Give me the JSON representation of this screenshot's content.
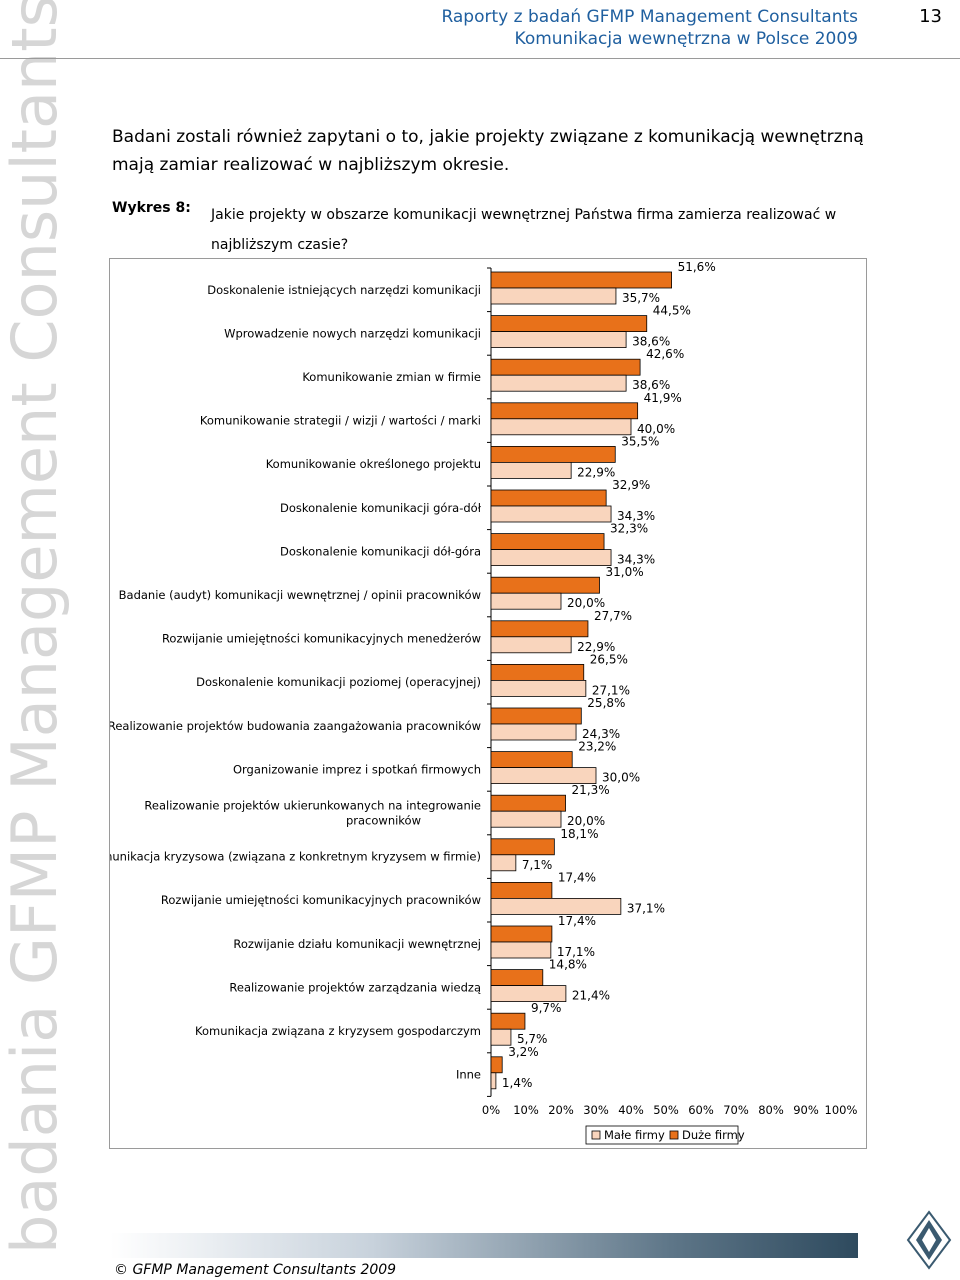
{
  "watermark": "badania GFMP Management Consultants",
  "header": {
    "line1": "Raporty z badań GFMP Management Consultants",
    "line2": "Komunikacja wewnętrzna w Polsce 2009",
    "page_number": "13"
  },
  "intro": "Badani zostali również zapytani o to, jakie projekty związane z komunikacją wewnętrzną mają zamiar realizować w najbliższym okresie.",
  "figure": {
    "label": "Wykres 8:",
    "title": "Jakie projekty w obszarze komunikacji wewnętrznej Państwa firma zamierza realizować w najbliższym czasie?"
  },
  "footer": "© GFMP Management Consultants 2009",
  "chart_data": {
    "type": "bar",
    "orientation": "horizontal",
    "categories": [
      "Doskonalenie istniejących narzędzi komunikacji",
      "Wprowadzenie nowych narzędzi komunikacji",
      "Komunikowanie zmian w firmie",
      "Komunikowanie strategii / wizji / wartości / marki",
      "Komunikowanie określonego projektu",
      "Doskonalenie komunikacji góra-dół",
      "Doskonalenie komunikacji dół-góra",
      "Badanie (audyt) komunikacji wewnętrznej / opinii pracowników",
      "Rozwijanie umiejętności komunikacyjnych menedżerów",
      "Doskonalenie komunikacji poziomej (operacyjnej)",
      "Realizowanie projektów budowania zaangażowania pracowników",
      "Organizowanie imprez i spotkań firmowych",
      "Realizowanie projektów ukierunkowanych na integrowanie pracowników",
      "Komunikacja kryzysowa (związana z konkretnym kryzysem w firmie)",
      "Rozwijanie umiejętności komunikacyjnych pracowników",
      "Rozwijanie działu komunikacji wewnętrznej",
      "Realizowanie projektów zarządzania wiedzą",
      "Komunikacja związana z kryzysem gospodarczym",
      "Inne"
    ],
    "series": [
      {
        "name": "Duże firmy",
        "color": "#e8711a",
        "values": [
          51.6,
          44.5,
          42.6,
          41.9,
          35.5,
          32.9,
          32.3,
          31.0,
          27.7,
          26.5,
          25.8,
          23.2,
          21.3,
          18.1,
          17.4,
          17.4,
          14.8,
          9.7,
          3.2
        ],
        "labels": [
          "51,6%",
          "44,5%",
          "42,6%",
          "41,9%",
          "35,5%",
          "32,9%",
          "32,3%",
          "31,0%",
          "27,7%",
          "26,5%",
          "25,8%",
          "23,2%",
          "21,3%",
          "18,1%",
          "17,4%",
          "17,4%",
          "14,8%",
          "9,7%",
          "3,2%"
        ]
      },
      {
        "name": "Małe firmy",
        "color": "#f9d5bd",
        "values": [
          35.7,
          38.6,
          38.6,
          40.0,
          22.9,
          34.3,
          34.3,
          20.0,
          22.9,
          27.1,
          24.3,
          30.0,
          20.0,
          7.1,
          37.1,
          17.1,
          21.4,
          5.7,
          1.4
        ],
        "labels": [
          "35,7%",
          "38,6%",
          "38,6%",
          "40,0%",
          "22,9%",
          "34,3%",
          "34,3%",
          "20,0%",
          "22,9%",
          "27,1%",
          "24,3%",
          "30,0%",
          "20,0%",
          "7,1%",
          "37,1%",
          "17,1%",
          "21,4%",
          "5,7%",
          "1,4%"
        ]
      }
    ],
    "xlim": [
      0,
      100
    ],
    "x_ticks": [
      "0%",
      "10%",
      "20%",
      "30%",
      "40%",
      "50%",
      "60%",
      "70%",
      "80%",
      "90%",
      "100%"
    ],
    "legend": [
      {
        "name": "Małe firmy",
        "color": "#f9d5bd"
      },
      {
        "name": "Duże firmy",
        "color": "#e8711a"
      }
    ],
    "legend_position": "bottom",
    "grid": false
  }
}
